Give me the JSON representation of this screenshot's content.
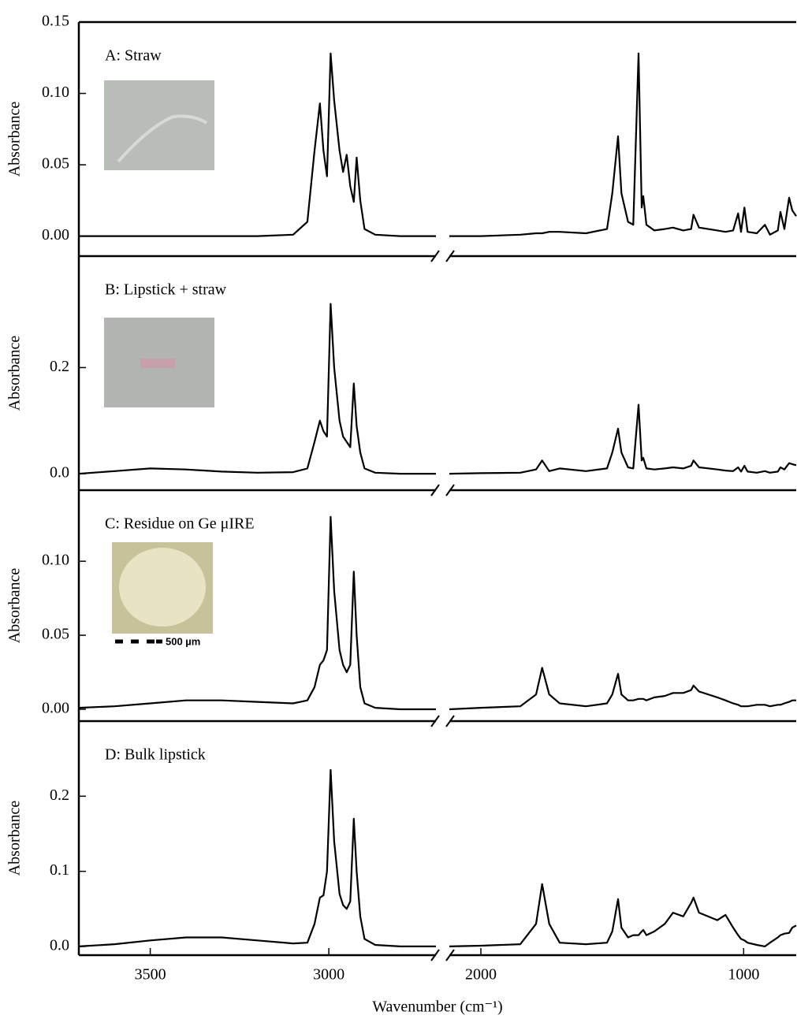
{
  "chart_data": [
    {
      "type": "line",
      "annotation": "A: Straw",
      "ylabel": "Absorbance",
      "xlim": [
        3700,
        800
      ],
      "x_break": [
        2700,
        2120
      ],
      "ylim": [
        -0.014,
        0.15
      ],
      "yticks": [
        {
          "value": 0,
          "label": "0.00"
        },
        {
          "value": 0.05,
          "label": "0.05"
        },
        {
          "value": 0.1,
          "label": "0.10"
        },
        {
          "value": 0.15,
          "label": "0.15"
        }
      ],
      "x": [
        3700,
        3600,
        3500,
        3400,
        3300,
        3200,
        3100,
        3060,
        3040,
        3025,
        3015,
        3005,
        2995,
        2985,
        2970,
        2960,
        2950,
        2940,
        2930,
        2922,
        2912,
        2900,
        2870,
        2800,
        2700,
        2400,
        2120,
        2000,
        1850,
        1790,
        1767,
        1740,
        1700,
        1600,
        1520,
        1500,
        1478,
        1465,
        1440,
        1420,
        1400,
        1388,
        1382,
        1370,
        1340,
        1300,
        1269,
        1230,
        1200,
        1191,
        1170,
        1100,
        1069,
        1040,
        1021,
        1010,
        997,
        985,
        950,
        919,
        900,
        870,
        860,
        845,
        827,
        815,
        800
      ],
      "series": [
        {
          "color": "#000000",
          "values": [
            0,
            0,
            0,
            0,
            0,
            0,
            0.001,
            0.01,
            0.06,
            0.093,
            0.06,
            0.042,
            0.128,
            0.095,
            0.06,
            0.045,
            0.057,
            0.035,
            0.024,
            0.055,
            0.025,
            0.005,
            0.001,
            0,
            0,
            null,
            0,
            0,
            0.001,
            0.002,
            0.002,
            0.003,
            0.003,
            0.002,
            0.005,
            0.03,
            0.07,
            0.03,
            0.01,
            0.008,
            0.128,
            0.02,
            0.028,
            0.008,
            0.004,
            0.005,
            0.006,
            0.004,
            0.005,
            0.015,
            0.006,
            0.004,
            0.003,
            0.004,
            0.016,
            0.003,
            0.02,
            0.003,
            0.002,
            0.008,
            0.001,
            0.004,
            0.017,
            0.005,
            0.027,
            0.018,
            0.014
          ]
        }
      ]
    },
    {
      "type": "line",
      "annotation": "B: Lipstick + straw",
      "ylabel": "Absorbance",
      "xlim": [
        3700,
        800
      ],
      "x_break": [
        2700,
        2120
      ],
      "ylim": [
        -0.031,
        0.41
      ],
      "yticks": [
        {
          "value": 0,
          "label": "0.0"
        },
        {
          "value": 0.2,
          "label": "0.2"
        }
      ],
      "x": [
        3700,
        3600,
        3500,
        3400,
        3300,
        3200,
        3100,
        3060,
        3040,
        3025,
        3015,
        3005,
        2995,
        2985,
        2970,
        2960,
        2950,
        2940,
        2930,
        2922,
        2912,
        2900,
        2870,
        2800,
        2700,
        2400,
        2120,
        2000,
        1850,
        1790,
        1767,
        1740,
        1700,
        1600,
        1520,
        1500,
        1478,
        1465,
        1440,
        1420,
        1400,
        1388,
        1382,
        1370,
        1340,
        1300,
        1269,
        1230,
        1200,
        1191,
        1170,
        1100,
        1069,
        1040,
        1021,
        1010,
        997,
        985,
        950,
        919,
        900,
        870,
        860,
        845,
        827,
        815,
        800
      ],
      "series": [
        {
          "color": "#000000",
          "values": [
            0,
            0.005,
            0.01,
            0.008,
            0.004,
            0.002,
            0.003,
            0.01,
            0.06,
            0.1,
            0.08,
            0.07,
            0.32,
            0.2,
            0.1,
            0.07,
            0.06,
            0.05,
            0.17,
            0.09,
            0.04,
            0.01,
            0.002,
            0,
            0,
            null,
            0,
            0.001,
            0.002,
            0.008,
            0.025,
            0.005,
            0.01,
            0.005,
            0.01,
            0.04,
            0.085,
            0.04,
            0.012,
            0.01,
            0.13,
            0.025,
            0.03,
            0.01,
            0.008,
            0.01,
            0.012,
            0.01,
            0.015,
            0.025,
            0.012,
            0.008,
            0.006,
            0.005,
            0.012,
            0.004,
            0.015,
            0.004,
            0.002,
            0.005,
            0.002,
            0.004,
            0.012,
            0.008,
            0.02,
            0.018,
            0.016
          ]
        }
      ]
    },
    {
      "type": "line",
      "annotation": "C: Residue on Ge μIRE",
      "inset_label": "500 µm",
      "ylabel": "Absorbance",
      "xlim": [
        3700,
        800
      ],
      "x_break": [
        2700,
        2120
      ],
      "ylim": [
        -0.008,
        0.148
      ],
      "yticks": [
        {
          "value": 0,
          "label": "0.00"
        },
        {
          "value": 0.05,
          "label": "0.05"
        },
        {
          "value": 0.1,
          "label": "0.10"
        }
      ],
      "x": [
        3700,
        3600,
        3500,
        3400,
        3300,
        3200,
        3100,
        3060,
        3040,
        3025,
        3015,
        3005,
        2995,
        2985,
        2970,
        2960,
        2950,
        2940,
        2930,
        2922,
        2912,
        2900,
        2870,
        2800,
        2700,
        2400,
        2120,
        2000,
        1850,
        1790,
        1767,
        1740,
        1700,
        1600,
        1520,
        1500,
        1478,
        1465,
        1440,
        1420,
        1400,
        1388,
        1382,
        1370,
        1340,
        1300,
        1269,
        1230,
        1200,
        1191,
        1170,
        1100,
        1069,
        1040,
        1021,
        1010,
        997,
        985,
        950,
        919,
        900,
        870,
        860,
        845,
        827,
        815,
        800
      ],
      "series": [
        {
          "color": "#000000",
          "values": [
            0.001,
            0.002,
            0.004,
            0.006,
            0.006,
            0.005,
            0.004,
            0.006,
            0.015,
            0.03,
            0.033,
            0.04,
            0.13,
            0.08,
            0.04,
            0.03,
            0.025,
            0.03,
            0.093,
            0.05,
            0.015,
            0.004,
            0.001,
            0,
            0,
            null,
            0,
            0.001,
            0.002,
            0.01,
            0.028,
            0.01,
            0.004,
            0.002,
            0.004,
            0.01,
            0.024,
            0.01,
            0.006,
            0.006,
            0.007,
            0.007,
            0.007,
            0.006,
            0.008,
            0.009,
            0.011,
            0.011,
            0.013,
            0.016,
            0.012,
            0.008,
            0.006,
            0.004,
            0.003,
            0.002,
            0.002,
            0.002,
            0.003,
            0.003,
            0.002,
            0.003,
            0.003,
            0.004,
            0.005,
            0.006,
            0.006
          ]
        }
      ]
    },
    {
      "type": "line",
      "annotation": "D: Bulk lipstick",
      "ylabel": "Absorbance",
      "xlabel": "Wavenumber (cm⁻¹)",
      "xlim": [
        3700,
        800
      ],
      "x_break": [
        2700,
        2120
      ],
      "xticks": [
        3500,
        3000,
        2000,
        1000
      ],
      "ylim": [
        -0.0116,
        0.3
      ],
      "yticks": [
        {
          "value": 0,
          "label": "0.0"
        },
        {
          "value": 0.1,
          "label": "0.1"
        },
        {
          "value": 0.2,
          "label": "0.2"
        }
      ],
      "x": [
        3700,
        3600,
        3500,
        3400,
        3300,
        3200,
        3100,
        3060,
        3040,
        3025,
        3015,
        3005,
        2995,
        2985,
        2970,
        2960,
        2950,
        2940,
        2930,
        2922,
        2912,
        2900,
        2870,
        2800,
        2700,
        2400,
        2120,
        2000,
        1850,
        1790,
        1767,
        1740,
        1700,
        1600,
        1520,
        1500,
        1478,
        1465,
        1440,
        1420,
        1400,
        1388,
        1382,
        1370,
        1340,
        1300,
        1269,
        1230,
        1200,
        1191,
        1170,
        1100,
        1069,
        1040,
        1021,
        1010,
        997,
        985,
        950,
        919,
        900,
        870,
        860,
        845,
        827,
        815,
        800
      ],
      "series": [
        {
          "color": "#000000",
          "values": [
            0,
            0.003,
            0.008,
            0.012,
            0.012,
            0.008,
            0.004,
            0.005,
            0.03,
            0.065,
            0.068,
            0.1,
            0.235,
            0.14,
            0.07,
            0.055,
            0.05,
            0.06,
            0.17,
            0.1,
            0.04,
            0.01,
            0.002,
            0,
            0,
            null,
            0,
            0.001,
            0.003,
            0.03,
            0.083,
            0.03,
            0.005,
            0.003,
            0.005,
            0.02,
            0.063,
            0.025,
            0.012,
            0.015,
            0.015,
            0.02,
            0.022,
            0.015,
            0.02,
            0.03,
            0.045,
            0.04,
            0.058,
            0.065,
            0.045,
            0.035,
            0.042,
            0.025,
            0.015,
            0.01,
            0.008,
            0.005,
            0.002,
            0,
            0.005,
            0.012,
            0.015,
            0.017,
            0.018,
            0.025,
            0.028
          ]
        }
      ]
    }
  ]
}
